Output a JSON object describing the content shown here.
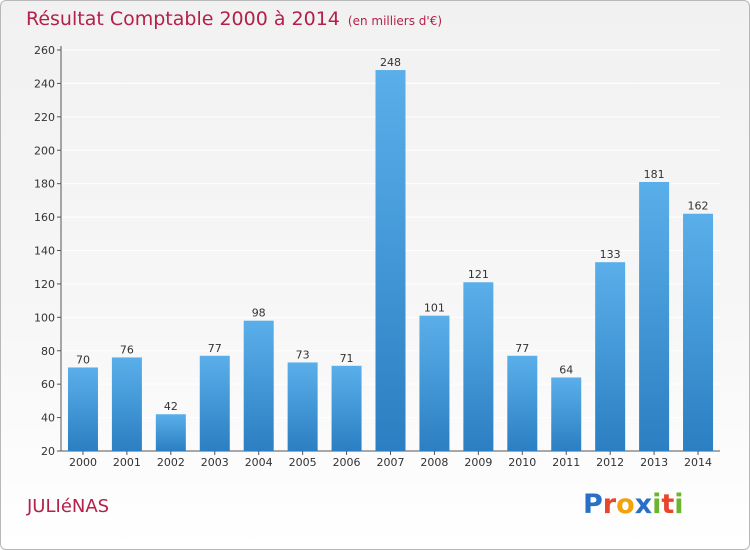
{
  "page": {
    "commune": "JULIéNAS",
    "logo": {
      "text": "Proxiti",
      "colors": [
        "#2a6fc7",
        "#e8452c",
        "#f2a20c",
        "#2a6fc7",
        "#6bb52e",
        "#e8452c",
        "#6bb52e"
      ]
    }
  },
  "colors": {
    "title": "#b3214a",
    "bar_top": "#5aafea",
    "bar_bottom": "#2b7fc2",
    "grid": "#ffffff"
  },
  "chart_data": {
    "type": "bar",
    "title": "Résultat Comptable 2000 à 2014",
    "subtitle": "(en milliers d'€)",
    "categories": [
      "2000",
      "2001",
      "2002",
      "2003",
      "2004",
      "2005",
      "2006",
      "2007",
      "2008",
      "2009",
      "2010",
      "2011",
      "2012",
      "2013",
      "2014"
    ],
    "values": [
      70,
      76,
      42,
      77,
      98,
      73,
      71,
      248,
      101,
      121,
      77,
      64,
      133,
      181,
      162
    ],
    "ylim": [
      20,
      260
    ],
    "yticks": [
      20,
      40,
      60,
      80,
      100,
      120,
      140,
      160,
      180,
      200,
      220,
      240,
      260
    ],
    "grid": true,
    "data_labels": true
  }
}
